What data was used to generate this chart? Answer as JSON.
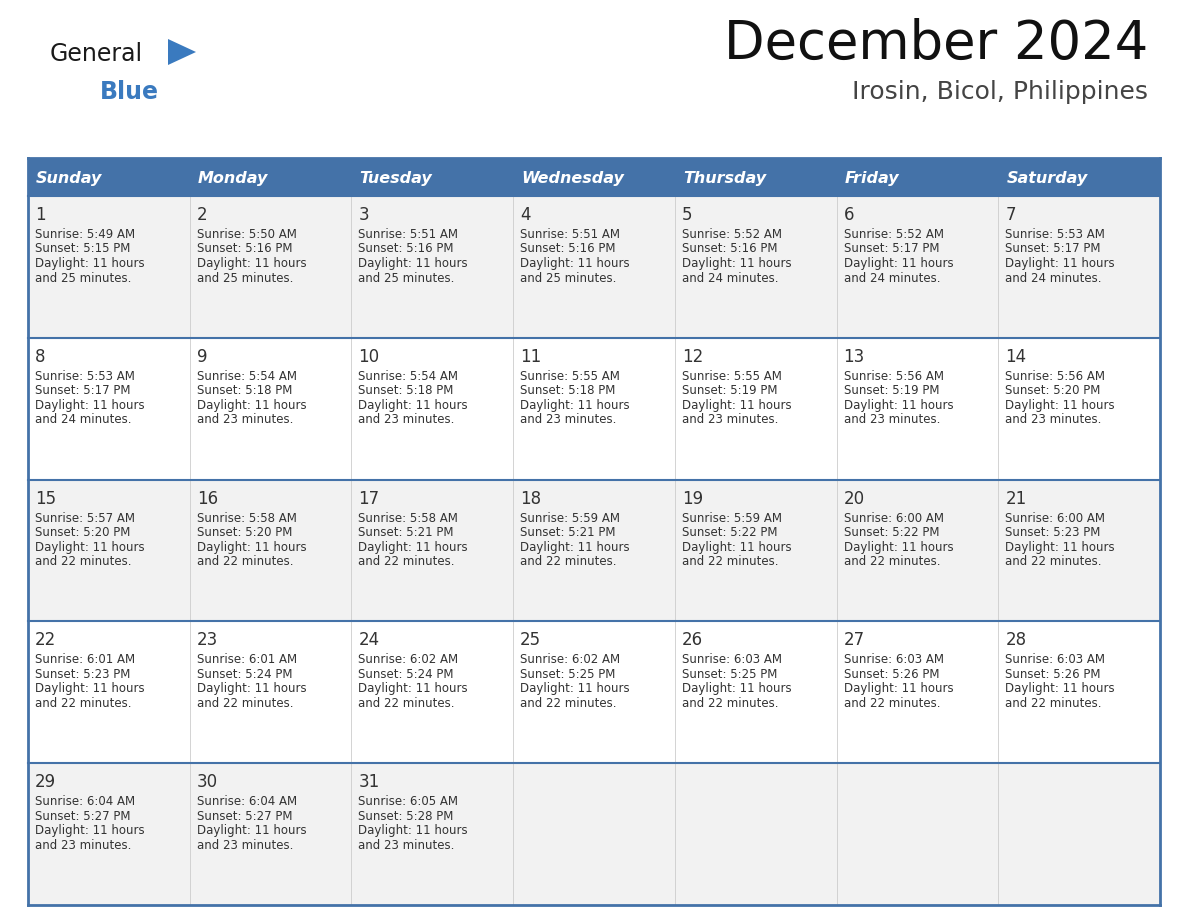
{
  "title": "December 2024",
  "subtitle": "Irosin, Bicol, Philippines",
  "header_color": "#4472a8",
  "header_text_color": "#ffffff",
  "row_bg_odd": "#f2f2f2",
  "row_bg_even": "#ffffff",
  "border_color": "#4472a8",
  "row_divider_color": "#4472a8",
  "col_divider_color": "#cccccc",
  "text_color": "#333333",
  "day_number_color": "#333333",
  "day_headers": [
    "Sunday",
    "Monday",
    "Tuesday",
    "Wednesday",
    "Thursday",
    "Friday",
    "Saturday"
  ],
  "weeks": [
    [
      {
        "day": 1,
        "sunrise": "5:49 AM",
        "sunset": "5:15 PM",
        "daylight": "11 hours and 25 minutes."
      },
      {
        "day": 2,
        "sunrise": "5:50 AM",
        "sunset": "5:16 PM",
        "daylight": "11 hours and 25 minutes."
      },
      {
        "day": 3,
        "sunrise": "5:51 AM",
        "sunset": "5:16 PM",
        "daylight": "11 hours and 25 minutes."
      },
      {
        "day": 4,
        "sunrise": "5:51 AM",
        "sunset": "5:16 PM",
        "daylight": "11 hours and 25 minutes."
      },
      {
        "day": 5,
        "sunrise": "5:52 AM",
        "sunset": "5:16 PM",
        "daylight": "11 hours and 24 minutes."
      },
      {
        "day": 6,
        "sunrise": "5:52 AM",
        "sunset": "5:17 PM",
        "daylight": "11 hours and 24 minutes."
      },
      {
        "day": 7,
        "sunrise": "5:53 AM",
        "sunset": "5:17 PM",
        "daylight": "11 hours and 24 minutes."
      }
    ],
    [
      {
        "day": 8,
        "sunrise": "5:53 AM",
        "sunset": "5:17 PM",
        "daylight": "11 hours and 24 minutes."
      },
      {
        "day": 9,
        "sunrise": "5:54 AM",
        "sunset": "5:18 PM",
        "daylight": "11 hours and 23 minutes."
      },
      {
        "day": 10,
        "sunrise": "5:54 AM",
        "sunset": "5:18 PM",
        "daylight": "11 hours and 23 minutes."
      },
      {
        "day": 11,
        "sunrise": "5:55 AM",
        "sunset": "5:18 PM",
        "daylight": "11 hours and 23 minutes."
      },
      {
        "day": 12,
        "sunrise": "5:55 AM",
        "sunset": "5:19 PM",
        "daylight": "11 hours and 23 minutes."
      },
      {
        "day": 13,
        "sunrise": "5:56 AM",
        "sunset": "5:19 PM",
        "daylight": "11 hours and 23 minutes."
      },
      {
        "day": 14,
        "sunrise": "5:56 AM",
        "sunset": "5:20 PM",
        "daylight": "11 hours and 23 minutes."
      }
    ],
    [
      {
        "day": 15,
        "sunrise": "5:57 AM",
        "sunset": "5:20 PM",
        "daylight": "11 hours and 22 minutes."
      },
      {
        "day": 16,
        "sunrise": "5:58 AM",
        "sunset": "5:20 PM",
        "daylight": "11 hours and 22 minutes."
      },
      {
        "day": 17,
        "sunrise": "5:58 AM",
        "sunset": "5:21 PM",
        "daylight": "11 hours and 22 minutes."
      },
      {
        "day": 18,
        "sunrise": "5:59 AM",
        "sunset": "5:21 PM",
        "daylight": "11 hours and 22 minutes."
      },
      {
        "day": 19,
        "sunrise": "5:59 AM",
        "sunset": "5:22 PM",
        "daylight": "11 hours and 22 minutes."
      },
      {
        "day": 20,
        "sunrise": "6:00 AM",
        "sunset": "5:22 PM",
        "daylight": "11 hours and 22 minutes."
      },
      {
        "day": 21,
        "sunrise": "6:00 AM",
        "sunset": "5:23 PM",
        "daylight": "11 hours and 22 minutes."
      }
    ],
    [
      {
        "day": 22,
        "sunrise": "6:01 AM",
        "sunset": "5:23 PM",
        "daylight": "11 hours and 22 minutes."
      },
      {
        "day": 23,
        "sunrise": "6:01 AM",
        "sunset": "5:24 PM",
        "daylight": "11 hours and 22 minutes."
      },
      {
        "day": 24,
        "sunrise": "6:02 AM",
        "sunset": "5:24 PM",
        "daylight": "11 hours and 22 minutes."
      },
      {
        "day": 25,
        "sunrise": "6:02 AM",
        "sunset": "5:25 PM",
        "daylight": "11 hours and 22 minutes."
      },
      {
        "day": 26,
        "sunrise": "6:03 AM",
        "sunset": "5:25 PM",
        "daylight": "11 hours and 22 minutes."
      },
      {
        "day": 27,
        "sunrise": "6:03 AM",
        "sunset": "5:26 PM",
        "daylight": "11 hours and 22 minutes."
      },
      {
        "day": 28,
        "sunrise": "6:03 AM",
        "sunset": "5:26 PM",
        "daylight": "11 hours and 22 minutes."
      }
    ],
    [
      {
        "day": 29,
        "sunrise": "6:04 AM",
        "sunset": "5:27 PM",
        "daylight": "11 hours and 23 minutes."
      },
      {
        "day": 30,
        "sunrise": "6:04 AM",
        "sunset": "5:27 PM",
        "daylight": "11 hours and 23 minutes."
      },
      {
        "day": 31,
        "sunrise": "6:05 AM",
        "sunset": "5:28 PM",
        "daylight": "11 hours and 23 minutes."
      },
      null,
      null,
      null,
      null
    ]
  ],
  "logo_text_general": "General",
  "logo_text_blue": "Blue",
  "logo_color_general": "#1a1a1a",
  "logo_color_blue": "#3a7abf",
  "logo_triangle_color": "#3a7abf",
  "title_fontsize": 38,
  "subtitle_fontsize": 18,
  "header_fontsize": 11.5,
  "day_num_fontsize": 12,
  "cell_text_fontsize": 8.5
}
